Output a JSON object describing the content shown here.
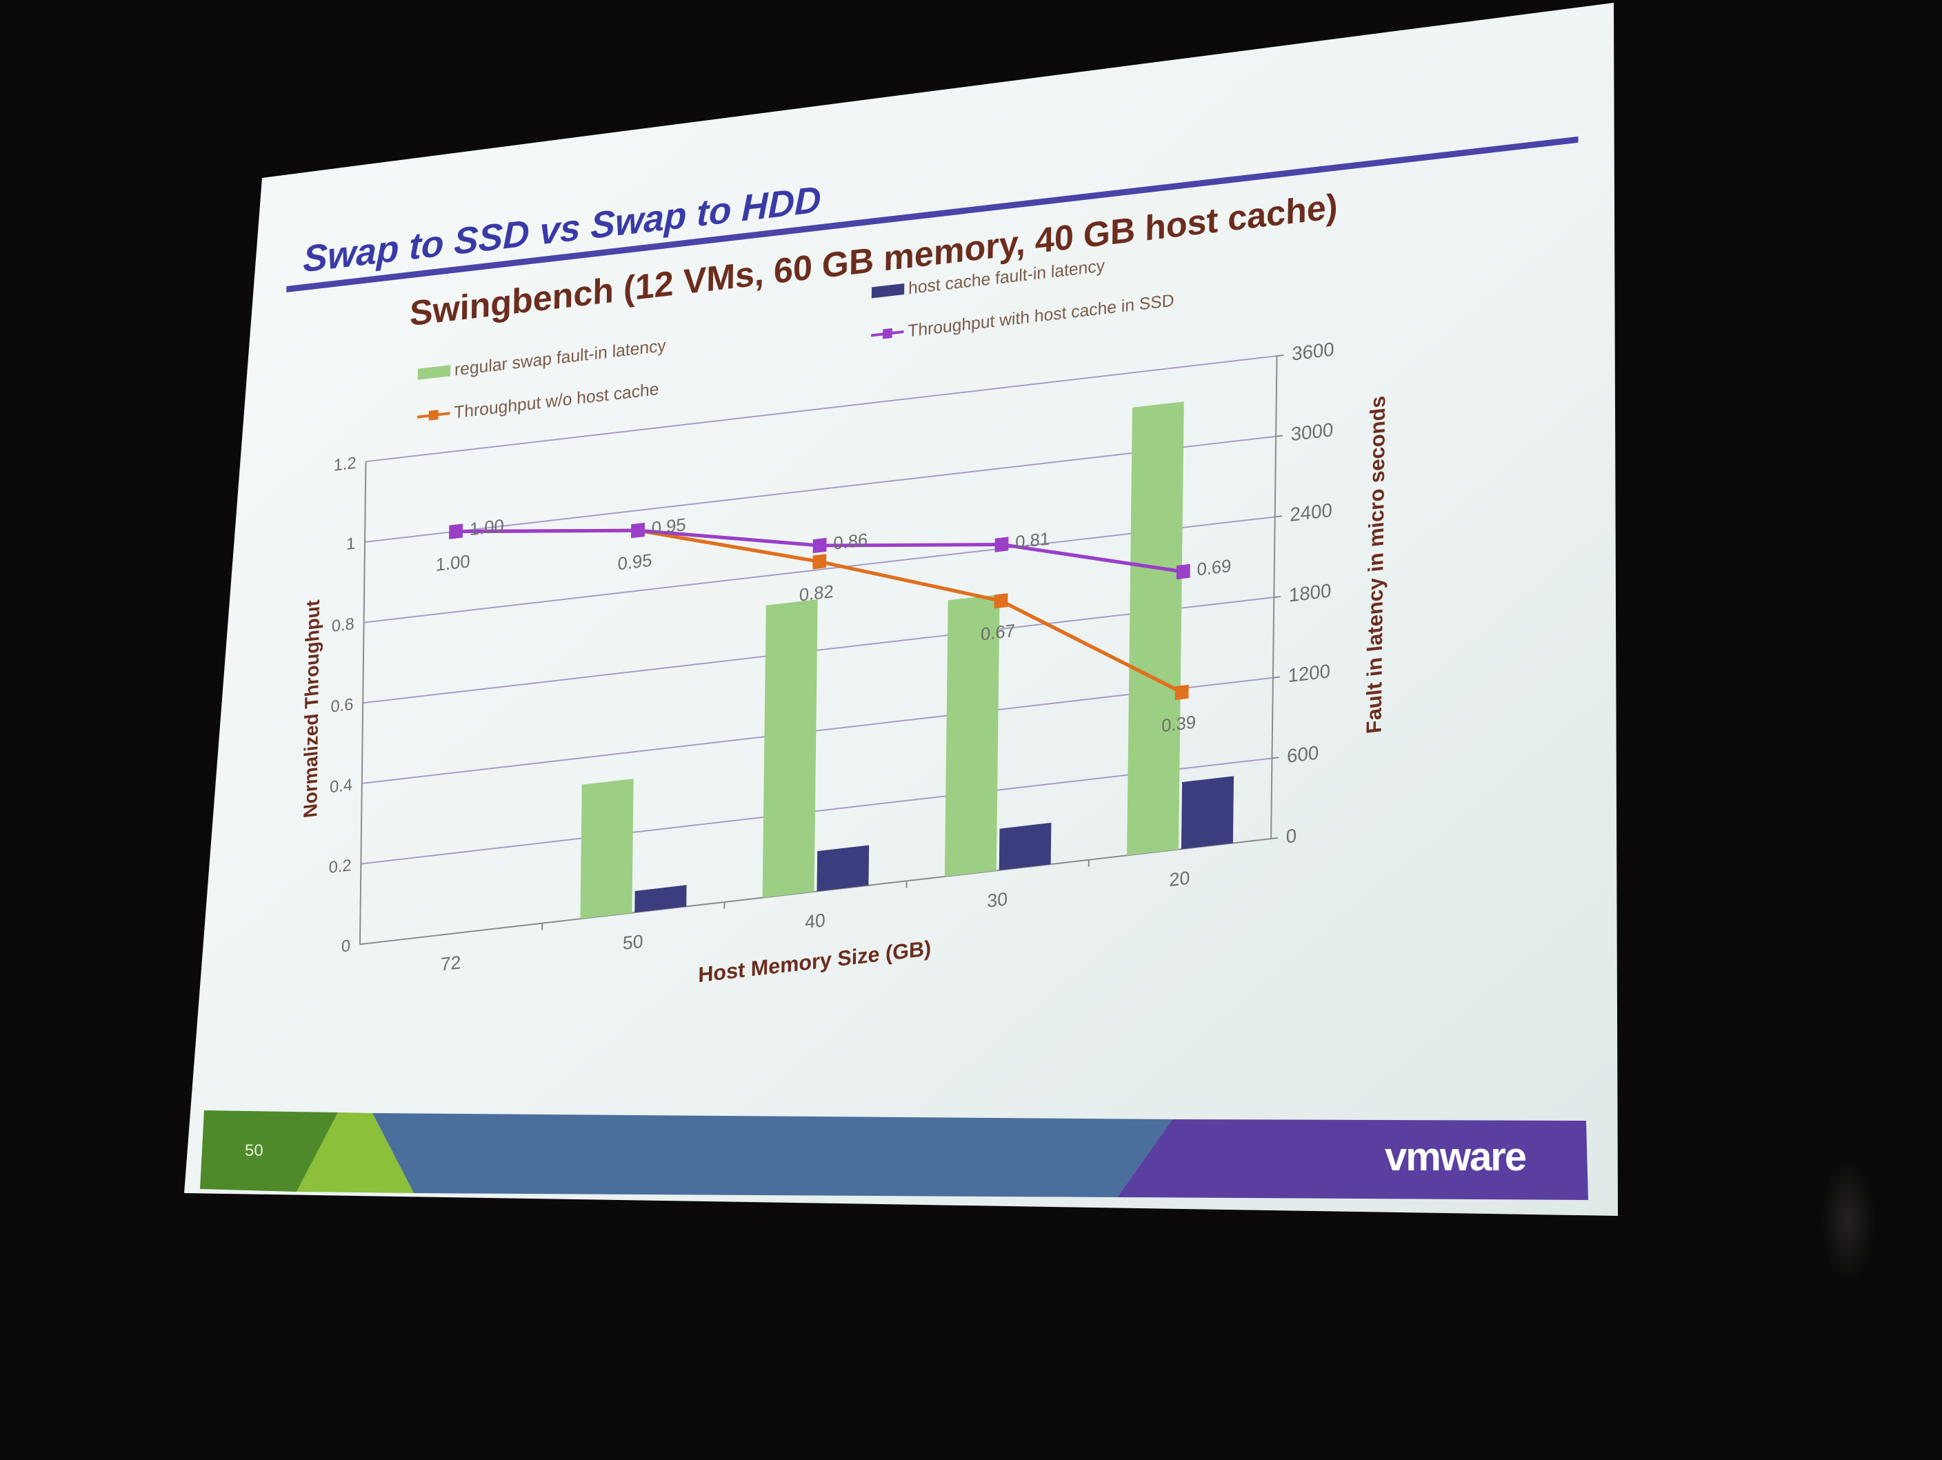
{
  "slide": {
    "heading": "Swap to SSD vs Swap to HDD",
    "page_number": "50",
    "brand": "vmware",
    "colors": {
      "heading": "#3a3aa6",
      "rule": "#4a43a8",
      "chart_title": "#6b2d1e",
      "footer_green": "#4e8a2a",
      "footer_lime": "#8cbf3a",
      "footer_blue": "#4a6f9c",
      "footer_purple": "#5a3fa0"
    }
  },
  "chart_data": {
    "type": "bar",
    "title": "Swingbench (12 VMs, 60 GB memory, 40 GB host cache)",
    "xlabel": "Host Memory Size (GB)",
    "ylabel": "Normalized  Throughput",
    "y2label": "Fault in latency in micro seconds",
    "categories": [
      "72",
      "50",
      "40",
      "30",
      "20"
    ],
    "ylim": [
      0,
      1.2
    ],
    "yticks": [
      "0",
      "0.2",
      "0.4",
      "0.6",
      "0.8",
      "1",
      "1.2"
    ],
    "y2lim": [
      0,
      3600
    ],
    "y2ticks": [
      "0",
      "600",
      "1200",
      "1800",
      "2400",
      "3000",
      "3600"
    ],
    "grid": true,
    "legend_position": "top",
    "series": [
      {
        "name": "regular  swap fault-in latency",
        "kind": "bar",
        "axis": "right",
        "color": "#9ccf84",
        "values": [
          0,
          1000,
          2180,
          2060,
          3340
        ]
      },
      {
        "name": "host cache fault-in latency",
        "kind": "bar",
        "axis": "right",
        "color": "#3b3d7e",
        "values": [
          0,
          160,
          300,
          310,
          500
        ]
      },
      {
        "name": "Throughput w/o host cache",
        "kind": "line",
        "axis": "left",
        "color": "#e06f1e",
        "values": [
          1.0,
          0.95,
          0.82,
          0.67,
          0.39
        ],
        "labels": [
          "1.00",
          "0.95",
          "0.82",
          "0.67",
          "0.39"
        ]
      },
      {
        "name": "Throughput with host cache in SSD",
        "kind": "line",
        "axis": "left",
        "color": "#9a3fc8",
        "values": [
          1.0,
          0.95,
          0.86,
          0.81,
          0.69
        ],
        "labels": [
          "1.00",
          "0.95",
          "0.86",
          "0.81",
          "0.69"
        ]
      }
    ]
  }
}
